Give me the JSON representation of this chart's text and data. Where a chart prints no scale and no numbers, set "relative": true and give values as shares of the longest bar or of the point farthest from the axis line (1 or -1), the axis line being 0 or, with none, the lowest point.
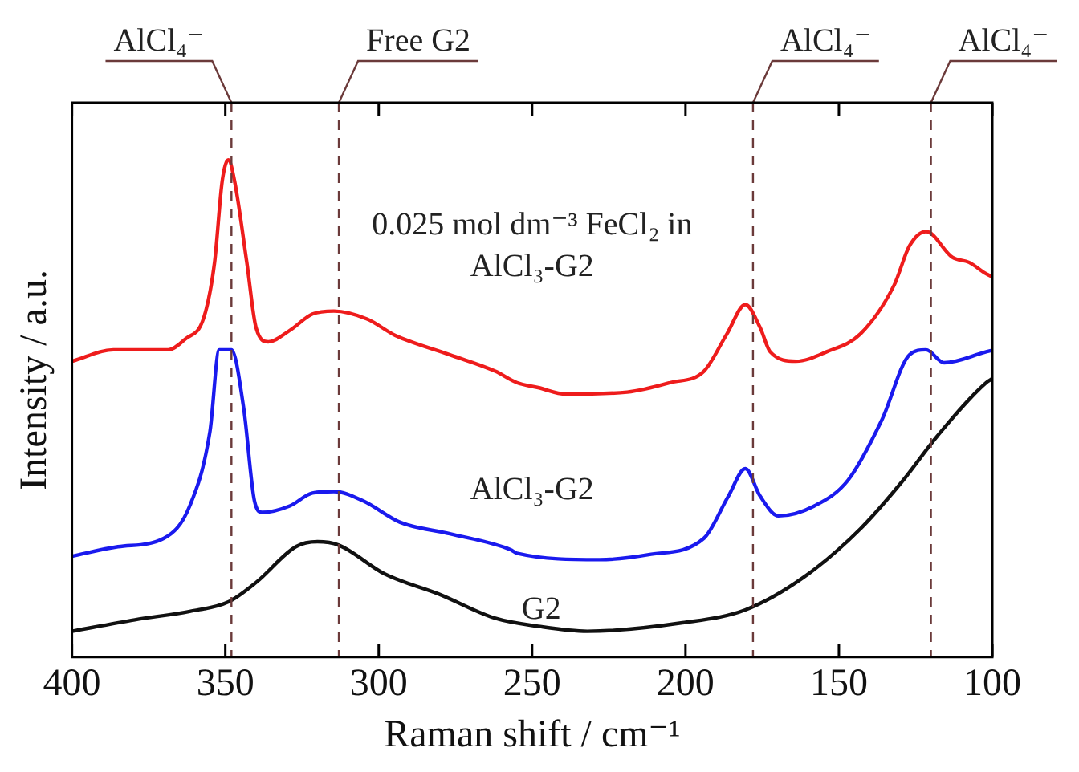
{
  "chart_data": {
    "type": "line",
    "xlabel": "Raman shift / cm⁻¹",
    "ylabel": "Intensity / a.u.",
    "relative": true,
    "xlim": [
      400,
      100
    ],
    "xticks": [
      400,
      350,
      300,
      250,
      200,
      150,
      100
    ],
    "grid": false,
    "legend": false,
    "marker": "none",
    "line_style": "solid",
    "series": [
      {
        "name": "0.025 mol dm⁻³ FeCl₂ in AlCl₃-G2",
        "color": "#ee1c1c",
        "x": [
          400,
          386.5,
          368.6,
          363,
          357,
          353.5,
          351,
          349,
          347,
          343,
          340,
          336,
          329,
          321.6,
          314.6,
          303.8,
          294.6,
          276.8,
          262,
          255,
          248,
          239,
          219,
          205,
          194,
          186.5,
          180.5,
          175.7,
          172.4,
          164,
          154,
          143,
          132,
          127,
          121.6,
          113,
          107.6,
          102,
          100
        ],
        "values": [
          0.595,
          0.618,
          0.618,
          0.64,
          0.683,
          0.794,
          0.958,
          1,
          0.958,
          0.794,
          0.663,
          0.634,
          0.657,
          0.69,
          0.696,
          0.68,
          0.647,
          0.608,
          0.575,
          0.552,
          0.542,
          0.529,
          0.533,
          0.552,
          0.575,
          0.65,
          0.709,
          0.663,
          0.614,
          0.595,
          0.614,
          0.65,
          0.748,
          0.827,
          0.856,
          0.804,
          0.794,
          0.771,
          0.765
        ]
      },
      {
        "name": "AlCl₃-G2",
        "color": "#1a1aee",
        "x": [
          400,
          385,
          370,
          361.6,
          355,
          352,
          348,
          344,
          340.5,
          338,
          329,
          321.6,
          314.6,
          305,
          293,
          276.8,
          257,
          255,
          228,
          212,
          194,
          186,
          180.5,
          175.7,
          169.7,
          158,
          147,
          136,
          127,
          121.6,
          115.7,
          102,
          100
        ],
        "values": [
          0.203,
          0.222,
          0.239,
          0.304,
          0.454,
          0.618,
          0.618,
          0.5,
          0.314,
          0.291,
          0.304,
          0.33,
          0.333,
          0.314,
          0.271,
          0.248,
          0.216,
          0.209,
          0.196,
          0.206,
          0.239,
          0.324,
          0.379,
          0.324,
          0.284,
          0.304,
          0.356,
          0.477,
          0.608,
          0.618,
          0.592,
          0.614,
          0.617
        ]
      },
      {
        "name": "G2",
        "color": "#111111",
        "x": [
          400,
          379.5,
          361.6,
          349,
          340,
          327,
          320,
          313,
          298,
          280.5,
          262,
          248,
          232,
          201,
          180.5,
          161.6,
          143,
          129,
          118,
          102,
          100
        ],
        "values": [
          0.052,
          0.075,
          0.092,
          0.111,
          0.15,
          0.222,
          0.232,
          0.225,
          0.167,
          0.127,
          0.078,
          0.062,
          0.052,
          0.069,
          0.095,
          0.16,
          0.258,
          0.356,
          0.444,
          0.552,
          0.56
        ]
      }
    ],
    "ref_lines": [
      {
        "axis": "x",
        "value": 348,
        "label": "AlCl₄⁻",
        "color": "#6b3a3a",
        "line_style": "dashed"
      },
      {
        "axis": "x",
        "value": 313,
        "label": "Free G2",
        "color": "#6b3a3a",
        "line_style": "dashed"
      },
      {
        "axis": "x",
        "value": 178,
        "label": "AlCl₄⁻",
        "color": "#6b3a3a",
        "line_style": "dashed"
      },
      {
        "axis": "x",
        "value": 120,
        "label": "AlCl₄⁻",
        "color": "#6b3a3a",
        "line_style": "dashed"
      }
    ]
  }
}
